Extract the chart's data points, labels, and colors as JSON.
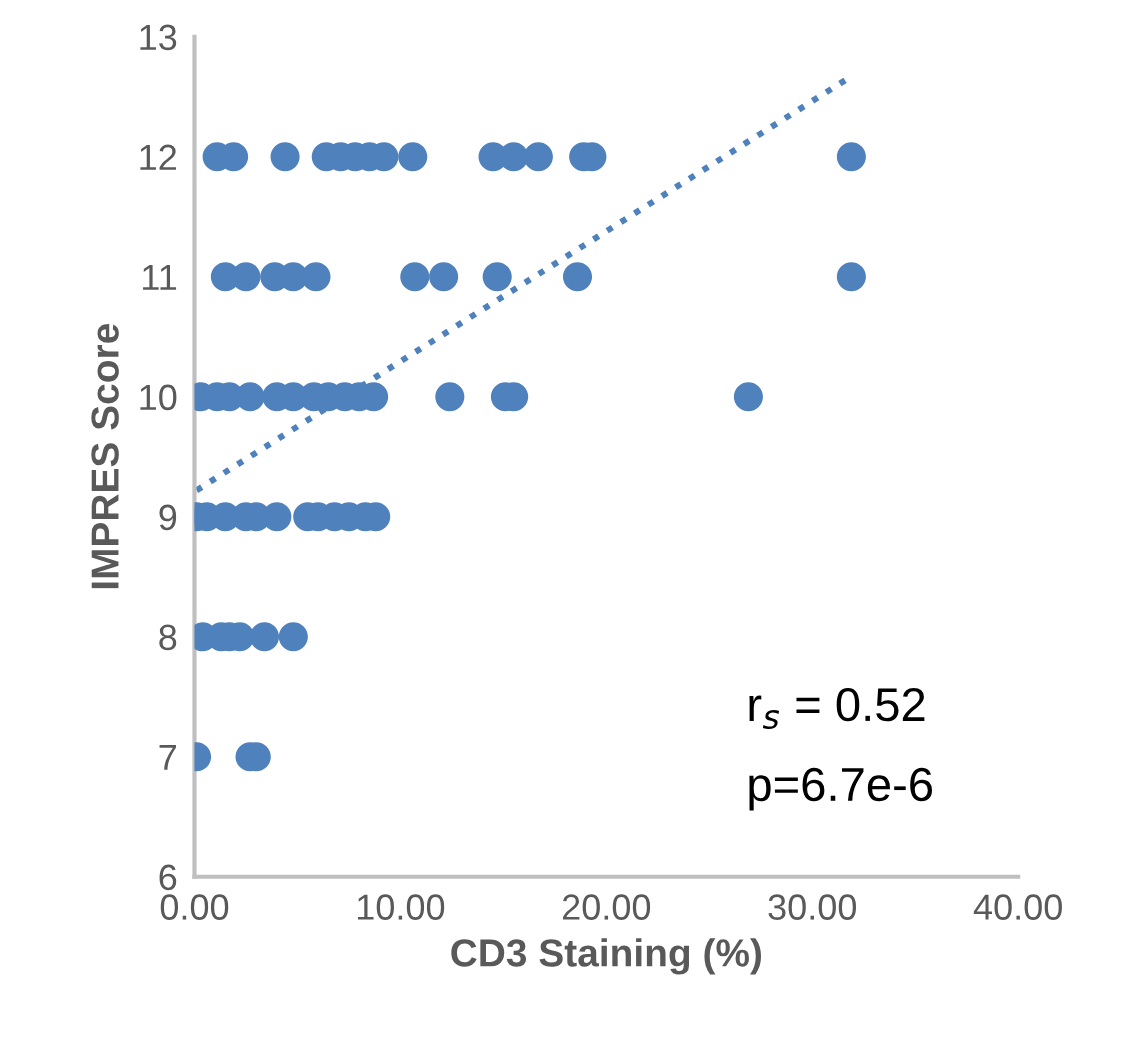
{
  "chart_data": {
    "type": "scatter",
    "xlabel": "CD3 Staining (%)",
    "ylabel": "IMPRES Score",
    "xlim": [
      0,
      40
    ],
    "ylim": [
      6,
      13
    ],
    "xticks": [
      {
        "value": 0,
        "label": "0.00"
      },
      {
        "value": 10,
        "label": "10.00"
      },
      {
        "value": 20,
        "label": "20.00"
      },
      {
        "value": 30,
        "label": "30.00"
      },
      {
        "value": 40,
        "label": "40.00"
      }
    ],
    "yticks": [
      6,
      7,
      8,
      9,
      10,
      11,
      12,
      13
    ],
    "grid": false,
    "series": [
      {
        "color": "#4f81bd",
        "x": [
          1.1,
          1.9,
          4.4,
          6.4,
          7.1,
          7.8,
          8.5,
          9.2,
          10.6,
          14.5,
          15.5,
          16.7,
          18.9,
          19.3,
          31.9,
          1.5,
          2.5,
          3.9,
          4.8,
          5.9,
          10.7,
          12.1,
          14.7,
          18.6,
          31.9,
          0.3,
          1.1,
          1.7,
          2.7,
          4.0,
          4.8,
          5.8,
          6.5,
          7.3,
          8.0,
          8.7,
          12.4,
          15.1,
          15.5,
          26.9,
          0.1,
          0.6,
          1.5,
          2.5,
          3.0,
          4.0,
          5.5,
          6.0,
          6.8,
          7.5,
          8.3,
          8.8,
          0.4,
          1.3,
          1.7,
          2.2,
          3.4,
          4.8,
          0.1,
          2.7,
          3.0
        ],
        "marker": "circle",
        "values": [
          12,
          12,
          12,
          12,
          12,
          12,
          12,
          12,
          12,
          12,
          12,
          12,
          12,
          12,
          12,
          11,
          11,
          11,
          11,
          11,
          11,
          11,
          11,
          11,
          11,
          10,
          10,
          10,
          10,
          10,
          10,
          10,
          10,
          10,
          10,
          10,
          10,
          10,
          10,
          10,
          9,
          9,
          9,
          9,
          9,
          9,
          9,
          9,
          9,
          9,
          9,
          9,
          8,
          8,
          8,
          8,
          8,
          8,
          7,
          7,
          7
        ]
      },
      {
        "type": "line",
        "line_style": "dotted",
        "color": "#4f81bd",
        "x": [
          0.1,
          31.9
        ],
        "values": [
          9.22,
          12.67
        ]
      }
    ],
    "annotations": [
      {
        "text": "r$_{s}$ = 0.52"
      },
      {
        "text": "p=6.7e-6"
      }
    ]
  }
}
